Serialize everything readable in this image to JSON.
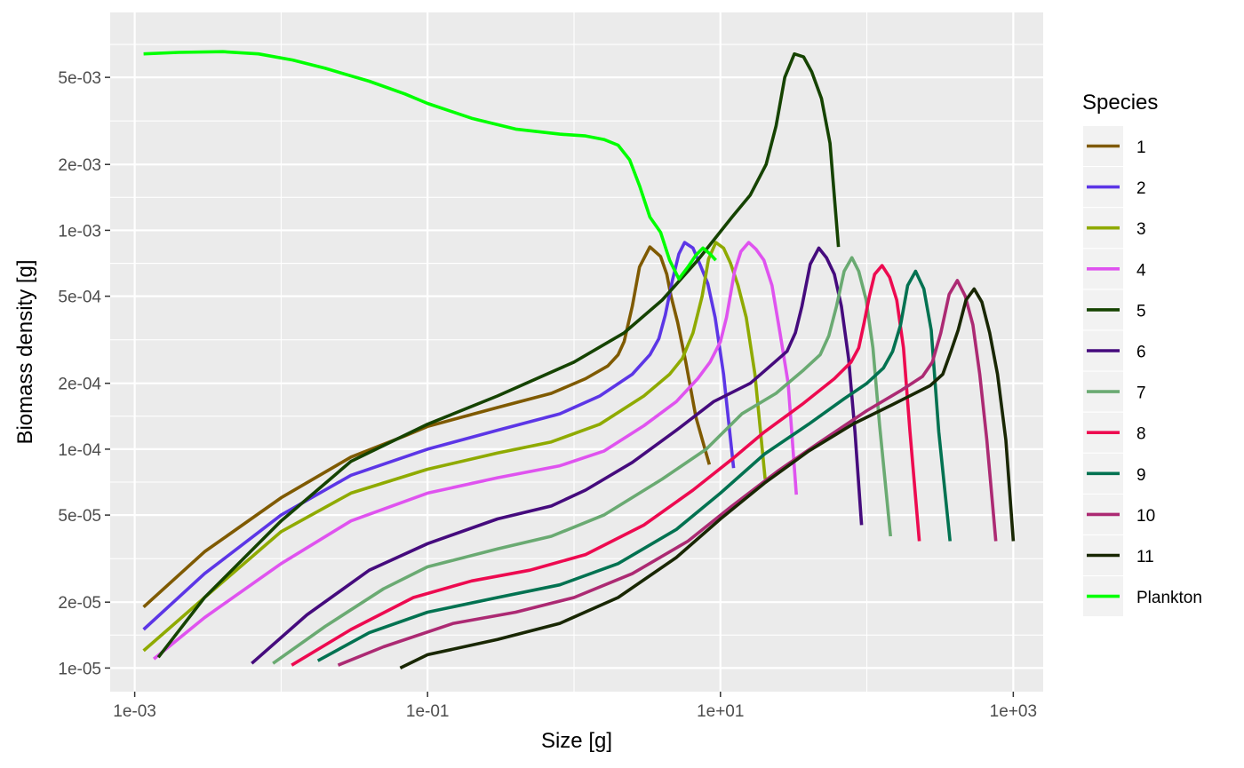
{
  "chart_data": {
    "type": "line",
    "xlabel": "Size [g]",
    "ylabel": "Biomass density [g]",
    "x_scale": "log10",
    "y_scale": "log10",
    "xlim": [
      0.00068,
      1600
    ],
    "ylim": [
      7.8e-06,
      0.0099
    ],
    "x_ticks": [
      {
        "value": 0.001,
        "label": "1e-03"
      },
      {
        "value": 0.1,
        "label": "1e-01"
      },
      {
        "value": 10,
        "label": "1e+01"
      },
      {
        "value": 1000,
        "label": "1e+03"
      }
    ],
    "y_ticks": [
      {
        "value": 1e-05,
        "label": "1e-05"
      },
      {
        "value": 2e-05,
        "label": "2e-05"
      },
      {
        "value": 5e-05,
        "label": "5e-05"
      },
      {
        "value": 0.0001,
        "label": "1e-04"
      },
      {
        "value": 0.0002,
        "label": "2e-04"
      },
      {
        "value": 0.0005,
        "label": "5e-04"
      },
      {
        "value": 0.001,
        "label": "1e-03"
      },
      {
        "value": 0.002,
        "label": "2e-03"
      },
      {
        "value": 0.005,
        "label": "5e-03"
      }
    ],
    "grid": true,
    "legend": {
      "title": "Species",
      "position": "right"
    },
    "series": [
      {
        "name": "1",
        "color": "#7f5a00",
        "points": [
          [
            0.00115,
            1.9e-05
          ],
          [
            0.003,
            3.4e-05
          ],
          [
            0.01,
            6e-05
          ],
          [
            0.03,
            9.2e-05
          ],
          [
            0.07,
            0.000115
          ],
          [
            0.1,
            0.000127
          ],
          [
            0.3,
            0.000155
          ],
          [
            0.7,
            0.00018
          ],
          [
            1.2,
            0.00021
          ],
          [
            1.7,
            0.00024
          ],
          [
            2.0,
            0.00027
          ],
          [
            2.2,
            0.00031
          ],
          [
            2.5,
            0.00045
          ],
          [
            2.8,
            0.00068
          ],
          [
            3.3,
            0.00084
          ],
          [
            3.9,
            0.00076
          ],
          [
            4.3,
            0.00063
          ],
          [
            4.6,
            0.0005
          ],
          [
            5.1,
            0.00038
          ],
          [
            5.8,
            0.00025
          ],
          [
            6.8,
            0.00014
          ],
          [
            8.4,
            8.5e-05
          ]
        ]
      },
      {
        "name": "2",
        "color": "#5c36e6",
        "points": [
          [
            0.00115,
            1.5e-05
          ],
          [
            0.003,
            2.7e-05
          ],
          [
            0.01,
            5e-05
          ],
          [
            0.03,
            7.6e-05
          ],
          [
            0.1,
            0.0001
          ],
          [
            0.3,
            0.000122
          ],
          [
            0.8,
            0.000145
          ],
          [
            1.5,
            0.000175
          ],
          [
            2.5,
            0.00022
          ],
          [
            3.3,
            0.00027
          ],
          [
            3.8,
            0.00032
          ],
          [
            4.2,
            0.00041
          ],
          [
            4.7,
            0.00059
          ],
          [
            5.2,
            0.00078
          ],
          [
            5.7,
            0.00088
          ],
          [
            6.5,
            0.00083
          ],
          [
            7.3,
            0.00069
          ],
          [
            8.2,
            0.00057
          ],
          [
            9.2,
            0.0004
          ],
          [
            10.5,
            0.00022
          ],
          [
            12.3,
            8.2e-05
          ]
        ]
      },
      {
        "name": "3",
        "color": "#8faa00",
        "points": [
          [
            0.00115,
            1.2e-05
          ],
          [
            0.003,
            2.1e-05
          ],
          [
            0.01,
            4.2e-05
          ],
          [
            0.03,
            6.3e-05
          ],
          [
            0.1,
            8.1e-05
          ],
          [
            0.3,
            9.6e-05
          ],
          [
            0.7,
            0.000108
          ],
          [
            1.5,
            0.00013
          ],
          [
            3.0,
            0.000175
          ],
          [
            4.5,
            0.00022
          ],
          [
            5.5,
            0.00026
          ],
          [
            6.5,
            0.00034
          ],
          [
            7.5,
            0.0005
          ],
          [
            8.3,
            0.00074
          ],
          [
            9.3,
            0.00088
          ],
          [
            10.5,
            0.00083
          ],
          [
            11.7,
            0.00071
          ],
          [
            13.2,
            0.00056
          ],
          [
            15.0,
            0.0004
          ],
          [
            17.2,
            0.00022
          ],
          [
            20.2,
            7.3e-05
          ]
        ]
      },
      {
        "name": "4",
        "color": "#df53ef",
        "points": [
          [
            0.00135,
            1.1e-05
          ],
          [
            0.003,
            1.7e-05
          ],
          [
            0.01,
            3e-05
          ],
          [
            0.03,
            4.7e-05
          ],
          [
            0.1,
            6.3e-05
          ],
          [
            0.3,
            7.4e-05
          ],
          [
            0.8,
            8.4e-05
          ],
          [
            1.6,
            9.8e-05
          ],
          [
            3.0,
            0.000128
          ],
          [
            5.0,
            0.000165
          ],
          [
            7.0,
            0.00021
          ],
          [
            8.5,
            0.00025
          ],
          [
            10.0,
            0.00031
          ],
          [
            11.0,
            0.0004
          ],
          [
            12.5,
            0.00065
          ],
          [
            13.8,
            0.0008
          ],
          [
            15.6,
            0.00088
          ],
          [
            17.5,
            0.00082
          ],
          [
            19.8,
            0.00073
          ],
          [
            22.5,
            0.00056
          ],
          [
            25.5,
            0.00034
          ],
          [
            29.0,
            0.0002
          ],
          [
            33.0,
            6.2e-05
          ]
        ]
      },
      {
        "name": "5",
        "color": "#154300",
        "points": [
          [
            0.00145,
            1.12e-05
          ],
          [
            0.003,
            2.1e-05
          ],
          [
            0.01,
            4.7e-05
          ],
          [
            0.03,
            8.8e-05
          ],
          [
            0.1,
            0.00013
          ],
          [
            0.3,
            0.000175
          ],
          [
            1.0,
            0.00025
          ],
          [
            2.2,
            0.00034
          ],
          [
            4.0,
            0.00048
          ],
          [
            7.0,
            0.00073
          ],
          [
            12.0,
            0.00115
          ],
          [
            16.0,
            0.00145
          ],
          [
            20.5,
            0.002
          ],
          [
            24.0,
            0.003
          ],
          [
            27.5,
            0.005
          ],
          [
            32.0,
            0.0064
          ],
          [
            37.0,
            0.0062
          ],
          [
            42.0,
            0.0053
          ],
          [
            49.0,
            0.004
          ],
          [
            56.0,
            0.0025
          ],
          [
            64.0,
            0.00084
          ]
        ]
      },
      {
        "name": "6",
        "color": "#450b7d",
        "points": [
          [
            0.0063,
            1.05e-05
          ],
          [
            0.015,
            1.75e-05
          ],
          [
            0.04,
            2.8e-05
          ],
          [
            0.1,
            3.7e-05
          ],
          [
            0.3,
            4.8e-05
          ],
          [
            0.7,
            5.5e-05
          ],
          [
            1.2,
            6.5e-05
          ],
          [
            2.5,
            8.7e-05
          ],
          [
            5.0,
            0.000122
          ],
          [
            9.0,
            0.000165
          ],
          [
            16.0,
            0.0002
          ],
          [
            23.5,
            0.00025
          ],
          [
            28.5,
            0.00028
          ],
          [
            32.5,
            0.00034
          ],
          [
            36.0,
            0.00045
          ],
          [
            41.0,
            0.0007
          ],
          [
            47.0,
            0.00083
          ],
          [
            53.0,
            0.00075
          ],
          [
            60.0,
            0.00063
          ],
          [
            67.0,
            0.00045
          ],
          [
            75.0,
            0.00026
          ],
          [
            83.0,
            0.00012
          ],
          [
            92.0,
            4.5e-05
          ]
        ]
      },
      {
        "name": "7",
        "color": "#6aaa72",
        "points": [
          [
            0.0088,
            1.05e-05
          ],
          [
            0.02,
            1.55e-05
          ],
          [
            0.05,
            2.3e-05
          ],
          [
            0.1,
            2.9e-05
          ],
          [
            0.3,
            3.5e-05
          ],
          [
            0.7,
            4e-05
          ],
          [
            1.6,
            5e-05
          ],
          [
            4.0,
            7.3e-05
          ],
          [
            8.0,
            0.0001
          ],
          [
            14.0,
            0.000145
          ],
          [
            24.0,
            0.00018
          ],
          [
            37.0,
            0.00023
          ],
          [
            48.0,
            0.00027
          ],
          [
            55.0,
            0.00033
          ],
          [
            62.0,
            0.00045
          ],
          [
            70.0,
            0.00065
          ],
          [
            79.0,
            0.00075
          ],
          [
            88.0,
            0.00065
          ],
          [
            99.0,
            0.00048
          ],
          [
            110.0,
            0.00029
          ],
          [
            122.0,
            0.00013
          ],
          [
            145.0,
            4e-05
          ]
        ]
      },
      {
        "name": "8",
        "color": "#ed0a50",
        "points": [
          [
            0.0118,
            1.03e-05
          ],
          [
            0.03,
            1.5e-05
          ],
          [
            0.08,
            2.1e-05
          ],
          [
            0.2,
            2.5e-05
          ],
          [
            0.5,
            2.8e-05
          ],
          [
            1.2,
            3.3e-05
          ],
          [
            3.0,
            4.5e-05
          ],
          [
            6.5,
            6.5e-05
          ],
          [
            12.0,
            9e-05
          ],
          [
            20.0,
            0.00012
          ],
          [
            36.0,
            0.00016
          ],
          [
            60.0,
            0.00021
          ],
          [
            78.0,
            0.00025
          ],
          [
            88.0,
            0.00029
          ],
          [
            96.0,
            0.00038
          ],
          [
            104.0,
            0.0005
          ],
          [
            113.0,
            0.00063
          ],
          [
            127.0,
            0.00069
          ],
          [
            143.0,
            0.00061
          ],
          [
            160.0,
            0.00048
          ],
          [
            178.0,
            0.00029
          ],
          [
            197.0,
            0.00012
          ],
          [
            228.0,
            3.8e-05
          ]
        ]
      },
      {
        "name": "9",
        "color": "#027251",
        "points": [
          [
            0.0178,
            1.08e-05
          ],
          [
            0.04,
            1.45e-05
          ],
          [
            0.1,
            1.8e-05
          ],
          [
            0.3,
            2.1e-05
          ],
          [
            0.8,
            2.4e-05
          ],
          [
            2.0,
            3e-05
          ],
          [
            5.0,
            4.3e-05
          ],
          [
            10.0,
            6.3e-05
          ],
          [
            20.0,
            9.5e-05
          ],
          [
            40.0,
            0.00013
          ],
          [
            70.0,
            0.00017
          ],
          [
            100.0,
            0.0002
          ],
          [
            130.0,
            0.000235
          ],
          [
            150.0,
            0.00028
          ],
          [
            170.0,
            0.00037
          ],
          [
            190.0,
            0.00056
          ],
          [
            215.0,
            0.00065
          ],
          [
            245.0,
            0.00054
          ],
          [
            275.0,
            0.00035
          ],
          [
            310.0,
            0.00012
          ],
          [
            370.0,
            3.8e-05
          ]
        ]
      },
      {
        "name": "10",
        "color": "#ac2a73",
        "points": [
          [
            0.0245,
            1.03e-05
          ],
          [
            0.05,
            1.25e-05
          ],
          [
            0.15,
            1.6e-05
          ],
          [
            0.4,
            1.8e-05
          ],
          [
            1.0,
            2.1e-05
          ],
          [
            2.5,
            2.7e-05
          ],
          [
            6.0,
            3.8e-05
          ],
          [
            12.0,
            5.5e-05
          ],
          [
            25.0,
            8e-05
          ],
          [
            50.0,
            0.00011
          ],
          [
            100.0,
            0.00015
          ],
          [
            170.0,
            0.000185
          ],
          [
            240.0,
            0.000215
          ],
          [
            280.0,
            0.00025
          ],
          [
            320.0,
            0.00034
          ],
          [
            365.0,
            0.00051
          ],
          [
            415.0,
            0.00059
          ],
          [
            470.0,
            0.0005
          ],
          [
            530.0,
            0.00037
          ],
          [
            590.0,
            0.00022
          ],
          [
            660.0,
            0.00011
          ],
          [
            760.0,
            3.8e-05
          ]
        ]
      },
      {
        "name": "11",
        "color": "#192703",
        "points": [
          [
            0.065,
            1e-05
          ],
          [
            0.1,
            1.15e-05
          ],
          [
            0.3,
            1.35e-05
          ],
          [
            0.8,
            1.6e-05
          ],
          [
            2.0,
            2.1e-05
          ],
          [
            5.0,
            3.2e-05
          ],
          [
            10.0,
            4.8e-05
          ],
          [
            20.0,
            7e-05
          ],
          [
            40.0,
            9.8e-05
          ],
          [
            80.0,
            0.00013
          ],
          [
            150.0,
            0.00016
          ],
          [
            270.0,
            0.000195
          ],
          [
            330.0,
            0.00022
          ],
          [
            375.0,
            0.00028
          ],
          [
            420.0,
            0.00035
          ],
          [
            475.0,
            0.00048
          ],
          [
            540.0,
            0.00054
          ],
          [
            610.0,
            0.00047
          ],
          [
            690.0,
            0.00034
          ],
          [
            780.0,
            0.00022
          ],
          [
            890.0,
            0.00011
          ],
          [
            1000.0,
            3.8e-05
          ]
        ]
      },
      {
        "name": "Plankton",
        "color": "#00ff00",
        "points": [
          [
            0.00115,
            0.0064
          ],
          [
            0.002,
            0.0065
          ],
          [
            0.004,
            0.00655
          ],
          [
            0.007,
            0.0064
          ],
          [
            0.012,
            0.006
          ],
          [
            0.02,
            0.0055
          ],
          [
            0.04,
            0.0048
          ],
          [
            0.07,
            0.0042
          ],
          [
            0.1,
            0.0038
          ],
          [
            0.2,
            0.00325
          ],
          [
            0.4,
            0.0029
          ],
          [
            0.8,
            0.00275
          ],
          [
            1.2,
            0.0027
          ],
          [
            1.6,
            0.0026
          ],
          [
            2.0,
            0.00245
          ],
          [
            2.4,
            0.0021
          ],
          [
            2.8,
            0.0016
          ],
          [
            3.3,
            0.00115
          ],
          [
            3.9,
            0.00098
          ],
          [
            4.5,
            0.00073
          ],
          [
            5.2,
            0.0006
          ],
          [
            6.0,
            0.00068
          ],
          [
            6.8,
            0.00077
          ],
          [
            7.6,
            0.00083
          ],
          [
            8.5,
            0.00078
          ],
          [
            9.3,
            0.00073
          ]
        ]
      }
    ]
  }
}
